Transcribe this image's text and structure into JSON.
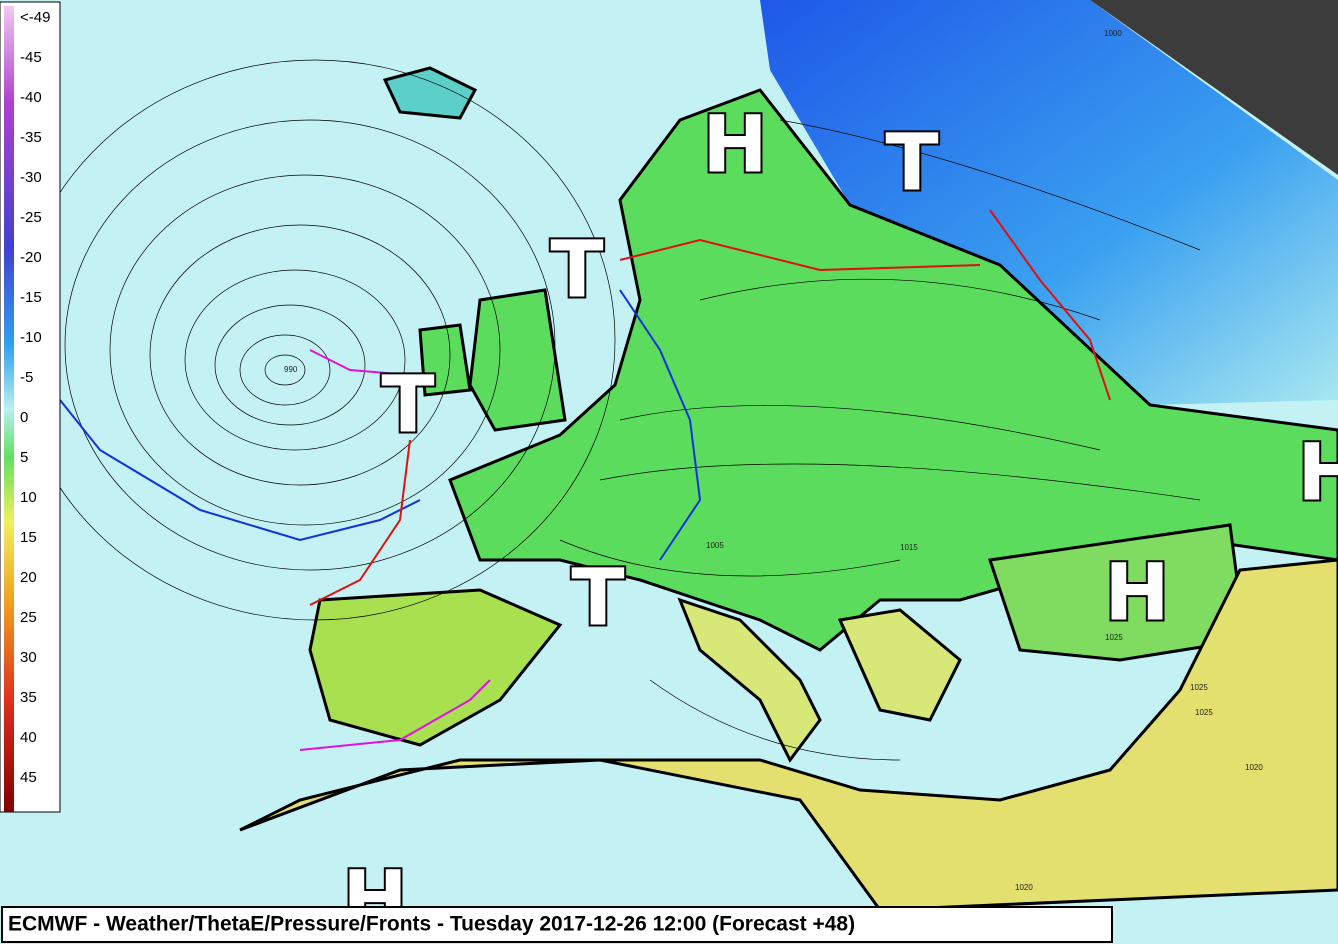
{
  "title": "ECMWF - Weather/ThetaE/Pressure/Fronts - Tuesday 2017-12-26 12:00 (Forecast +48)",
  "legend": {
    "labels": [
      "<-49",
      "-45",
      "-40",
      "-35",
      "-30",
      "-25",
      "-20",
      "-15",
      "-10",
      "-5",
      "0",
      "5",
      "10",
      "15",
      "20",
      "25",
      "30",
      "35",
      "40",
      "45"
    ]
  },
  "pressure_centers": [
    {
      "label": "H"
    },
    {
      "label": "T"
    },
    {
      "label": "T"
    },
    {
      "label": "T"
    },
    {
      "label": "T"
    },
    {
      "label": "H"
    },
    {
      "label": "H"
    },
    {
      "label": "H"
    }
  ],
  "isobar_labels": [
    "990",
    "1000",
    "1005",
    "1015",
    "1020",
    "1025",
    "1025",
    "1020",
    "1025"
  ]
}
